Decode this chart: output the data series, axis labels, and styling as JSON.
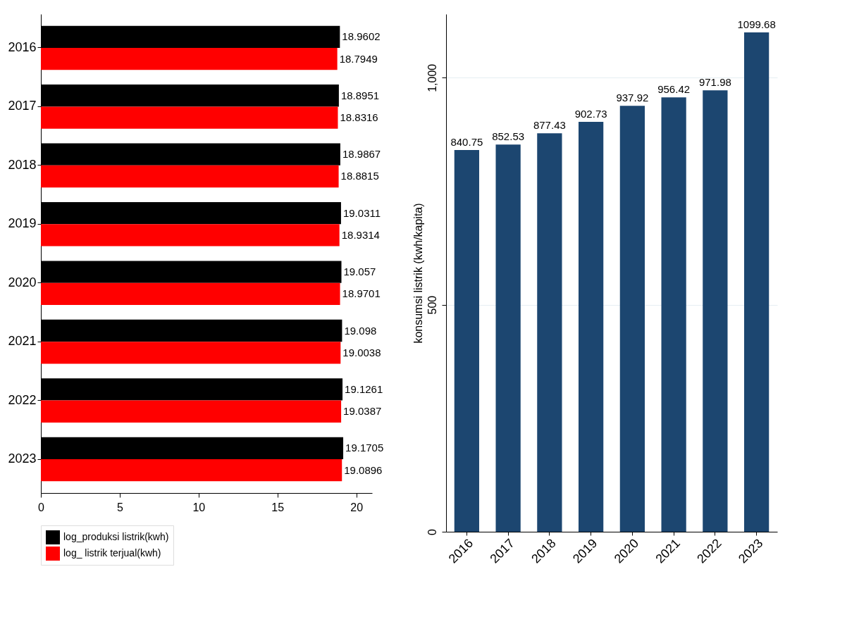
{
  "chart_data": [
    {
      "type": "bar",
      "orientation": "horizontal",
      "categories": [
        "2016",
        "2017",
        "2018",
        "2019",
        "2020",
        "2021",
        "2022",
        "2023"
      ],
      "series": [
        {
          "name": "log_produksi listrik(kwh)",
          "color": "#000000",
          "values": [
            18.9602,
            18.8951,
            18.9867,
            19.0311,
            19.057,
            19.098,
            19.1261,
            19.1705
          ]
        },
        {
          "name": "log_ listrik terjual(kwh)",
          "color": "#ff0000",
          "values": [
            18.7949,
            18.8316,
            18.8815,
            18.9314,
            18.9701,
            19.0038,
            19.0387,
            19.0896
          ]
        }
      ],
      "xlim": [
        0,
        21
      ],
      "xticks": [
        0,
        5,
        10,
        15,
        20
      ],
      "grid": false,
      "legend": "bottom",
      "data_labels": true
    },
    {
      "type": "bar",
      "categories": [
        "2016",
        "2017",
        "2018",
        "2019",
        "2020",
        "2021",
        "2022",
        "2023"
      ],
      "series": [
        {
          "color": "#1c4670",
          "values": [
            840.75,
            852.53,
            877.43,
            902.73,
            937.92,
            956.42,
            971.98,
            1099.68
          ]
        }
      ],
      "ylabel": "konsumsi listrik (kwh/kapita)",
      "ylim": [
        0,
        1140
      ],
      "yticks": [
        0,
        500,
        {
          "value": 1000,
          "label": "1,000"
        }
      ],
      "grid": "y",
      "legend": false,
      "data_labels": true
    }
  ]
}
